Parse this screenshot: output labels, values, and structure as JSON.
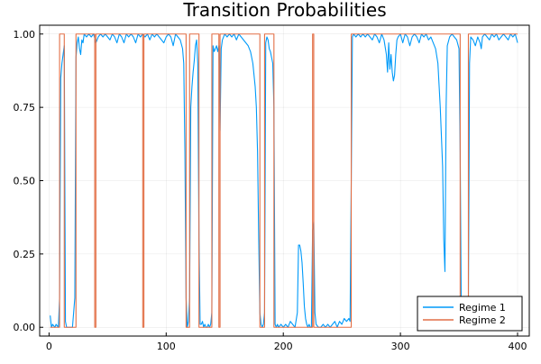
{
  "chart_data": {
    "type": "line",
    "title": "Transition Probabilities",
    "xlabel": "",
    "ylabel": "",
    "xlim": [
      -8,
      410
    ],
    "ylim": [
      -0.03,
      1.03
    ],
    "x_ticks": [
      0,
      100,
      200,
      300,
      400
    ],
    "x_tick_labels": [
      "0",
      "100",
      "200",
      "300",
      "400"
    ],
    "y_ticks": [
      0,
      0.25,
      0.5,
      0.75,
      1
    ],
    "y_tick_labels": [
      "0.00",
      "0.25",
      "0.50",
      "0.75",
      "1.00"
    ],
    "grid": true,
    "legend_position": "bottom-right",
    "series": [
      {
        "name": "Regime 1",
        "color": "#009af9",
        "points": [
          [
            1,
            0.04
          ],
          [
            2,
            0.0
          ],
          [
            3,
            0.01
          ],
          [
            5,
            0.0
          ],
          [
            6,
            0.01
          ],
          [
            8,
            0.0
          ],
          [
            9,
            0.1
          ],
          [
            10,
            0.85
          ],
          [
            11,
            0.9
          ],
          [
            12,
            0.93
          ],
          [
            13,
            0.96
          ],
          [
            14,
            0.02
          ],
          [
            15,
            0.0
          ],
          [
            16,
            0.0
          ],
          [
            17,
            0.0
          ],
          [
            18,
            0.0
          ],
          [
            19,
            0.0
          ],
          [
            20,
            0.0
          ],
          [
            21,
            0.05
          ],
          [
            22,
            0.1
          ],
          [
            23,
            0.92
          ],
          [
            24,
            0.97
          ],
          [
            25,
            0.99
          ],
          [
            26,
            0.95
          ],
          [
            27,
            0.93
          ],
          [
            28,
            0.98
          ],
          [
            29,
            0.97
          ],
          [
            30,
            1.0
          ],
          [
            32,
            0.99
          ],
          [
            34,
            1.0
          ],
          [
            36,
            0.99
          ],
          [
            38,
            1.0
          ],
          [
            40,
            0.97
          ],
          [
            42,
            0.99
          ],
          [
            44,
            1.0
          ],
          [
            46,
            0.99
          ],
          [
            48,
            1.0
          ],
          [
            50,
            0.99
          ],
          [
            52,
            0.98
          ],
          [
            54,
            1.0
          ],
          [
            56,
            0.99
          ],
          [
            58,
            0.97
          ],
          [
            60,
            1.0
          ],
          [
            62,
            0.99
          ],
          [
            64,
            0.97
          ],
          [
            66,
            1.0
          ],
          [
            68,
            0.99
          ],
          [
            70,
            1.0
          ],
          [
            72,
            0.99
          ],
          [
            74,
            0.97
          ],
          [
            76,
            1.0
          ],
          [
            78,
            0.99
          ],
          [
            80,
            1.0
          ],
          [
            82,
            0.99
          ],
          [
            84,
            1.0
          ],
          [
            86,
            0.98
          ],
          [
            88,
            1.0
          ],
          [
            90,
            0.99
          ],
          [
            92,
            1.0
          ],
          [
            94,
            0.99
          ],
          [
            96,
            0.98
          ],
          [
            98,
            0.97
          ],
          [
            100,
            0.99
          ],
          [
            102,
            1.0
          ],
          [
            104,
            0.99
          ],
          [
            106,
            0.96
          ],
          [
            108,
            1.0
          ],
          [
            110,
            0.99
          ],
          [
            112,
            0.98
          ],
          [
            114,
            0.95
          ],
          [
            115,
            0.9
          ],
          [
            116,
            0.6
          ],
          [
            117,
            0.1
          ],
          [
            118,
            0.0
          ],
          [
            119,
            0.02
          ],
          [
            120,
            0.1
          ],
          [
            121,
            0.75
          ],
          [
            122,
            0.82
          ],
          [
            123,
            0.87
          ],
          [
            124,
            0.91
          ],
          [
            125,
            0.96
          ],
          [
            126,
            0.98
          ],
          [
            127,
            0.9
          ],
          [
            128,
            0.3
          ],
          [
            129,
            0.01
          ],
          [
            130,
            0.01
          ],
          [
            131,
            0.02
          ],
          [
            132,
            0.0
          ],
          [
            133,
            0.01
          ],
          [
            134,
            0.0
          ],
          [
            135,
            0.0
          ],
          [
            136,
            0.01
          ],
          [
            137,
            0.0
          ],
          [
            138,
            0.01
          ],
          [
            139,
            0.05
          ],
          [
            140,
            0.96
          ],
          [
            141,
            0.94
          ],
          [
            142,
            0.95
          ],
          [
            143,
            0.96
          ],
          [
            144,
            0.94
          ],
          [
            145,
            0.96
          ],
          [
            146,
            0.67
          ],
          [
            147,
            0.95
          ],
          [
            148,
            0.98
          ],
          [
            149,
            0.99
          ],
          [
            150,
            1.0
          ],
          [
            152,
            0.99
          ],
          [
            154,
            1.0
          ],
          [
            156,
            0.99
          ],
          [
            158,
            1.0
          ],
          [
            160,
            0.98
          ],
          [
            162,
            1.0
          ],
          [
            164,
            0.99
          ],
          [
            166,
            0.98
          ],
          [
            168,
            0.97
          ],
          [
            170,
            0.96
          ],
          [
            172,
            0.94
          ],
          [
            174,
            0.9
          ],
          [
            176,
            0.82
          ],
          [
            177,
            0.75
          ],
          [
            178,
            0.6
          ],
          [
            179,
            0.3
          ],
          [
            180,
            0.05
          ],
          [
            181,
            0.01
          ],
          [
            182,
            0.0
          ],
          [
            183,
            0.01
          ],
          [
            184,
            0.05
          ],
          [
            185,
            0.97
          ],
          [
            186,
            0.99
          ],
          [
            187,
            0.98
          ],
          [
            188,
            0.95
          ],
          [
            189,
            0.94
          ],
          [
            190,
            0.92
          ],
          [
            191,
            0.9
          ],
          [
            192,
            0.75
          ],
          [
            193,
            0.01
          ],
          [
            194,
            0.0
          ],
          [
            195,
            0.01
          ],
          [
            196,
            0.0
          ],
          [
            198,
            0.01
          ],
          [
            200,
            0.0
          ],
          [
            202,
            0.01
          ],
          [
            204,
            0.0
          ],
          [
            206,
            0.02
          ],
          [
            208,
            0.01
          ],
          [
            210,
            0.0
          ],
          [
            212,
            0.05
          ],
          [
            213,
            0.28
          ],
          [
            214,
            0.28
          ],
          [
            215,
            0.26
          ],
          [
            216,
            0.22
          ],
          [
            217,
            0.15
          ],
          [
            218,
            0.07
          ],
          [
            219,
            0.03
          ],
          [
            220,
            0.01
          ],
          [
            221,
            0.0
          ],
          [
            222,
            0.01
          ],
          [
            223,
            0.0
          ],
          [
            224,
            0.0
          ],
          [
            225,
            0.33
          ],
          [
            226,
            0.36
          ],
          [
            227,
            0.05
          ],
          [
            228,
            0.01
          ],
          [
            230,
            0.0
          ],
          [
            232,
            0.0
          ],
          [
            234,
            0.01
          ],
          [
            236,
            0.0
          ],
          [
            238,
            0.01
          ],
          [
            240,
            0.0
          ],
          [
            242,
            0.01
          ],
          [
            244,
            0.02
          ],
          [
            246,
            0.0
          ],
          [
            248,
            0.02
          ],
          [
            250,
            0.01
          ],
          [
            252,
            0.03
          ],
          [
            254,
            0.02
          ],
          [
            256,
            0.03
          ],
          [
            257,
            0.02
          ],
          [
            258,
            0.5
          ],
          [
            259,
            0.99
          ],
          [
            260,
            1.0
          ],
          [
            262,
            0.99
          ],
          [
            264,
            1.0
          ],
          [
            266,
            0.99
          ],
          [
            268,
            1.0
          ],
          [
            270,
            0.99
          ],
          [
            272,
            1.0
          ],
          [
            274,
            0.99
          ],
          [
            276,
            0.98
          ],
          [
            278,
            1.0
          ],
          [
            280,
            0.99
          ],
          [
            282,
            0.97
          ],
          [
            284,
            1.0
          ],
          [
            286,
            0.98
          ],
          [
            288,
            0.93
          ],
          [
            289,
            0.87
          ],
          [
            290,
            0.97
          ],
          [
            291,
            0.88
          ],
          [
            292,
            0.93
          ],
          [
            293,
            0.87
          ],
          [
            294,
            0.84
          ],
          [
            295,
            0.86
          ],
          [
            296,
            0.93
          ],
          [
            297,
            0.98
          ],
          [
            298,
            0.99
          ],
          [
            300,
            1.0
          ],
          [
            302,
            0.97
          ],
          [
            304,
            1.0
          ],
          [
            306,
            0.99
          ],
          [
            308,
            0.96
          ],
          [
            310,
            0.99
          ],
          [
            312,
            1.0
          ],
          [
            314,
            0.99
          ],
          [
            316,
            0.97
          ],
          [
            318,
            1.0
          ],
          [
            320,
            0.99
          ],
          [
            322,
            1.0
          ],
          [
            324,
            0.98
          ],
          [
            326,
            0.99
          ],
          [
            328,
            0.97
          ],
          [
            330,
            0.95
          ],
          [
            332,
            0.9
          ],
          [
            334,
            0.75
          ],
          [
            336,
            0.55
          ],
          [
            337,
            0.3
          ],
          [
            338,
            0.19
          ],
          [
            339,
            0.75
          ],
          [
            340,
            0.96
          ],
          [
            342,
            0.99
          ],
          [
            344,
            1.0
          ],
          [
            346,
            0.99
          ],
          [
            348,
            0.98
          ],
          [
            350,
            0.95
          ],
          [
            351,
            0.6
          ],
          [
            352,
            0.02
          ],
          [
            353,
            0.0
          ],
          [
            354,
            0.0
          ],
          [
            355,
            0.01
          ],
          [
            356,
            0.0
          ],
          [
            357,
            0.01
          ],
          [
            358,
            0.05
          ],
          [
            359,
            0.9
          ],
          [
            360,
            0.99
          ],
          [
            362,
            0.98
          ],
          [
            364,
            0.96
          ],
          [
            366,
            0.99
          ],
          [
            368,
            0.97
          ],
          [
            369,
            0.95
          ],
          [
            370,
            0.99
          ],
          [
            372,
            1.0
          ],
          [
            374,
            0.99
          ],
          [
            376,
            0.98
          ],
          [
            378,
            1.0
          ],
          [
            380,
            0.99
          ],
          [
            382,
            1.0
          ],
          [
            384,
            0.98
          ],
          [
            386,
            0.99
          ],
          [
            388,
            1.0
          ],
          [
            390,
            0.99
          ],
          [
            392,
            0.98
          ],
          [
            394,
            1.0
          ],
          [
            396,
            0.99
          ],
          [
            398,
            1.0
          ],
          [
            400,
            0.97
          ]
        ]
      },
      {
        "name": "Regime 2",
        "color": "#e26f46",
        "points": [
          [
            1,
            0.0
          ],
          [
            9,
            0.0
          ],
          [
            9,
            1.0
          ],
          [
            13,
            1.0
          ],
          [
            13,
            0.0
          ],
          [
            23,
            0.0
          ],
          [
            23,
            1.0
          ],
          [
            39,
            1.0
          ],
          [
            39,
            0.0
          ],
          [
            40,
            0.0
          ],
          [
            40,
            1.0
          ],
          [
            80,
            1.0
          ],
          [
            80,
            0.0
          ],
          [
            81,
            0.0
          ],
          [
            81,
            1.0
          ],
          [
            117,
            1.0
          ],
          [
            117,
            0.0
          ],
          [
            120,
            0.0
          ],
          [
            120,
            1.0
          ],
          [
            128,
            1.0
          ],
          [
            128,
            0.0
          ],
          [
            139,
            0.0
          ],
          [
            139,
            1.0
          ],
          [
            145,
            1.0
          ],
          [
            145,
            0.0
          ],
          [
            146,
            0.0
          ],
          [
            146,
            1.0
          ],
          [
            180,
            1.0
          ],
          [
            180,
            0.0
          ],
          [
            184,
            0.0
          ],
          [
            184,
            1.0
          ],
          [
            192,
            1.0
          ],
          [
            192,
            0.0
          ],
          [
            225,
            0.0
          ],
          [
            225,
            1.0
          ],
          [
            226,
            1.0
          ],
          [
            226,
            0.0
          ],
          [
            258,
            0.0
          ],
          [
            258,
            1.0
          ],
          [
            351,
            1.0
          ],
          [
            351,
            0.0
          ],
          [
            358,
            0.0
          ],
          [
            358,
            1.0
          ],
          [
            400,
            1.0
          ]
        ]
      }
    ]
  }
}
